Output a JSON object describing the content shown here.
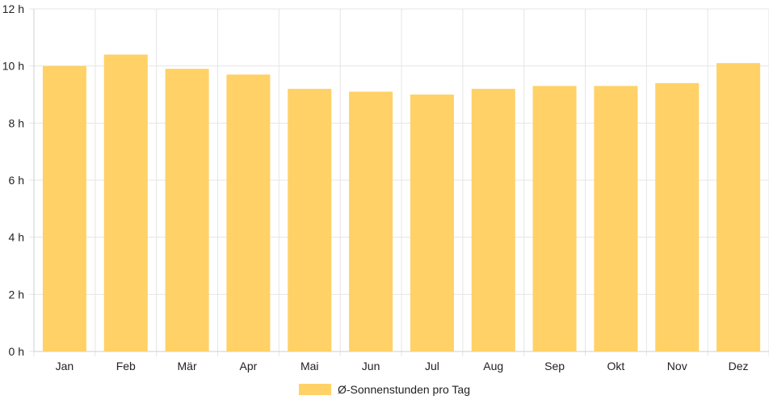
{
  "chart_data": {
    "type": "bar",
    "categories": [
      "Jan",
      "Feb",
      "Mär",
      "Apr",
      "Mai",
      "Jun",
      "Jul",
      "Aug",
      "Sep",
      "Okt",
      "Nov",
      "Dez"
    ],
    "series": [
      {
        "name": "Ø-Sonnenstunden pro Tag",
        "values": [
          10.0,
          10.4,
          9.9,
          9.7,
          9.2,
          9.1,
          9.0,
          9.2,
          9.3,
          9.3,
          9.4,
          10.1
        ]
      }
    ],
    "y_ticks": [
      "0 h",
      "2 h",
      "4 h",
      "6 h",
      "8 h",
      "10 h",
      "12 h"
    ],
    "ylim": [
      0,
      12
    ],
    "grid": true,
    "legend_position": "bottom",
    "bar_color": "#FFD166"
  }
}
